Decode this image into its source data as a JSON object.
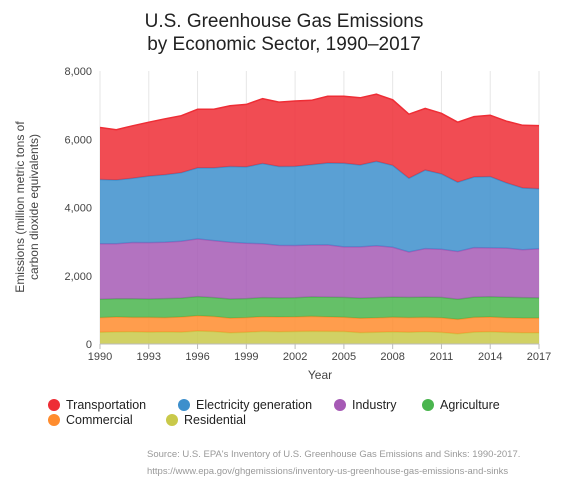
{
  "title_line1": "U.S. Greenhouse Gas Emissions",
  "title_line2": "by Economic Sector, 1990–2017",
  "source_line1": "Source: U.S. EPA's Inventory of U.S. Greenhouse Gas Emissions and Sinks: 1990-2017.",
  "source_line2": "https://www.epa.gov/ghgemissions/inventory-us-greenhouse-gas-emissions-and-sinks",
  "chart_data": {
    "type": "area",
    "stacked": true,
    "title": "U.S. Greenhouse Gas Emissions by Economic Sector, 1990–2017",
    "xlabel": "Year",
    "ylabel_line1": "Emissions (million metric tons of",
    "ylabel_line2": "carbon dioxide equivalents)",
    "xlim": [
      1990,
      2017
    ],
    "ylim": [
      0,
      8000
    ],
    "x_ticks": [
      1990,
      1993,
      1996,
      1999,
      2002,
      2005,
      2008,
      2011,
      2014,
      2017
    ],
    "y_ticks": [
      0,
      2000,
      4000,
      6000,
      8000
    ],
    "y_tick_labels": [
      "0",
      "2,000",
      "4,000",
      "6,000",
      "8,000"
    ],
    "grid": "vertical",
    "legend_position": "bottom",
    "x": [
      1990,
      1991,
      1992,
      1993,
      1994,
      1995,
      1996,
      1997,
      1998,
      1999,
      2000,
      2001,
      2002,
      2003,
      2004,
      2005,
      2006,
      2007,
      2008,
      2009,
      2010,
      2011,
      2012,
      2013,
      2014,
      2015,
      2016,
      2017
    ],
    "series": [
      {
        "name": "Residential",
        "color": "#c9c94a",
        "values": [
          345,
          355,
          360,
          350,
          355,
          350,
          380,
          365,
          330,
          345,
          370,
          360,
          365,
          375,
          370,
          365,
          335,
          345,
          355,
          345,
          360,
          340,
          300,
          350,
          360,
          340,
          330,
          330
        ]
      },
      {
        "name": "Commercial",
        "color": "#ff8c2e",
        "values": [
          430,
          435,
          420,
          430,
          420,
          440,
          450,
          440,
          430,
          430,
          430,
          430,
          430,
          435,
          425,
          420,
          420,
          420,
          430,
          430,
          420,
          430,
          420,
          430,
          430,
          430,
          430,
          430
        ]
      },
      {
        "name": "Agriculture",
        "color": "#4ab54e",
        "values": [
          535,
          535,
          545,
          540,
          555,
          555,
          560,
          555,
          560,
          555,
          560,
          560,
          560,
          570,
          580,
          580,
          590,
          595,
          590,
          590,
          595,
          595,
          590,
          595,
          595,
          600,
          600,
          590
        ]
      },
      {
        "name": "Industry",
        "color": "#a65ab5",
        "values": [
          1625,
          1610,
          1650,
          1650,
          1650,
          1665,
          1690,
          1670,
          1660,
          1620,
          1580,
          1540,
          1530,
          1520,
          1530,
          1480,
          1500,
          1520,
          1460,
          1330,
          1420,
          1410,
          1400,
          1450,
          1430,
          1440,
          1400,
          1440
        ]
      },
      {
        "name": "Electricity generation",
        "color": "#3d8fcc",
        "values": [
          1885,
          1870,
          1880,
          1950,
          1980,
          2010,
          2080,
          2130,
          2220,
          2240,
          2350,
          2310,
          2320,
          2350,
          2400,
          2450,
          2400,
          2470,
          2400,
          2160,
          2300,
          2210,
          2030,
          2070,
          2090,
          1910,
          1810,
          1760
        ]
      },
      {
        "name": "Transportation",
        "color": "#ee2d35",
        "values": [
          1525,
          1475,
          1540,
          1580,
          1640,
          1670,
          1720,
          1720,
          1780,
          1830,
          1900,
          1890,
          1915,
          1890,
          1955,
          1965,
          1970,
          1970,
          1920,
          1880,
          1810,
          1775,
          1760,
          1770,
          1800,
          1810,
          1840,
          1850
        ]
      }
    ]
  }
}
